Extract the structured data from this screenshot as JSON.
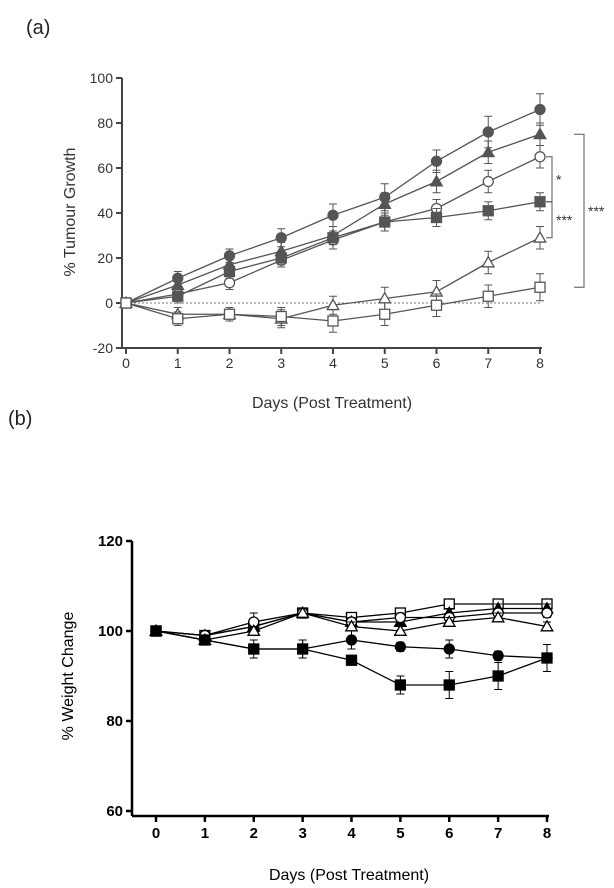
{
  "panel_labels": {
    "a": "(a)",
    "b": "(b)"
  },
  "chart_data": [
    {
      "type": "line",
      "panel": "(a)",
      "xlabel": "Days (Post Treatment)",
      "ylabel": "% Tumour Growth",
      "x": [
        0,
        1,
        2,
        3,
        4,
        5,
        6,
        7,
        8
      ],
      "xlim": [
        0,
        8
      ],
      "ylim": [
        -20,
        100
      ],
      "yticks": [
        -20,
        0,
        20,
        40,
        60,
        80,
        100
      ],
      "xticks": [
        0,
        1,
        2,
        3,
        4,
        5,
        6,
        7,
        8
      ],
      "grid": false,
      "reference_line": 0,
      "color": "#555555",
      "series": [
        {
          "marker": "circle-filled",
          "values": [
            0,
            11,
            21,
            29,
            39,
            47,
            63,
            76,
            86
          ],
          "errors": [
            1,
            3,
            3,
            4,
            5,
            6,
            5,
            7,
            7
          ]
        },
        {
          "marker": "triangle-filled",
          "values": [
            0,
            8,
            17,
            23,
            30,
            44,
            54,
            67,
            75
          ],
          "errors": [
            1,
            3,
            3,
            4,
            4,
            5,
            5,
            5,
            5
          ]
        },
        {
          "marker": "circle-open",
          "values": [
            0,
            4,
            9,
            19,
            28,
            36,
            42,
            54,
            65
          ],
          "errors": [
            1,
            3,
            3,
            3,
            4,
            4,
            4,
            5,
            5
          ]
        },
        {
          "marker": "square-filled",
          "values": [
            0,
            3,
            14,
            20,
            29,
            36,
            38,
            41,
            45
          ],
          "errors": [
            1,
            3,
            3,
            3,
            3,
            4,
            4,
            4,
            4
          ]
        },
        {
          "marker": "triangle-open",
          "values": [
            0,
            -5,
            -5,
            -7,
            -1,
            2,
            5,
            18,
            29
          ],
          "errors": [
            1,
            3,
            3,
            4,
            4,
            5,
            5,
            5,
            5
          ]
        },
        {
          "marker": "square-open",
          "values": [
            0,
            -7,
            -5,
            -6,
            -8,
            -5,
            -1,
            3,
            7
          ],
          "errors": [
            1,
            3,
            3,
            4,
            5,
            5,
            5,
            5,
            6
          ]
        }
      ],
      "significance": [
        {
          "label": "*",
          "between": [
            3,
            2
          ]
        },
        {
          "label": "***",
          "between": [
            4,
            3
          ]
        },
        {
          "label": "***",
          "between": [
            5,
            1
          ]
        }
      ]
    },
    {
      "type": "line",
      "panel": "(b)",
      "xlabel": "Days (Post Treatment)",
      "ylabel": "% Weight Change",
      "x": [
        0,
        1,
        2,
        3,
        4,
        5,
        6,
        7,
        8
      ],
      "xlim": [
        0,
        8
      ],
      "ylim": [
        60,
        120
      ],
      "yticks": [
        60,
        80,
        100,
        120
      ],
      "xticks": [
        0,
        1,
        2,
        3,
        4,
        5,
        6,
        7,
        8
      ],
      "grid": false,
      "color": "#000000",
      "series": [
        {
          "marker": "square-open",
          "values": [
            100,
            99,
            101,
            104,
            103,
            104,
            106,
            106,
            106
          ],
          "errors": [
            0,
            1,
            1,
            1,
            1,
            1,
            1,
            1,
            1
          ]
        },
        {
          "marker": "triangle-filled",
          "values": [
            100,
            99,
            101,
            104,
            102,
            102,
            104,
            105,
            105
          ],
          "errors": [
            0,
            1,
            1,
            1,
            1,
            1,
            1,
            1,
            1
          ]
        },
        {
          "marker": "circle-open",
          "values": [
            100,
            99,
            102,
            104,
            102,
            103,
            103,
            104,
            104
          ],
          "errors": [
            0,
            1,
            2,
            1,
            1,
            1,
            1,
            1,
            1
          ]
        },
        {
          "marker": "triangle-open",
          "values": [
            100,
            98,
            100,
            104,
            101,
            100,
            102,
            103,
            101
          ],
          "errors": [
            0,
            1,
            1,
            1,
            1,
            1,
            1,
            1,
            1
          ]
        },
        {
          "marker": "circle-filled",
          "values": [
            100,
            98,
            96,
            96,
            98,
            96.5,
            96,
            94.5,
            94
          ],
          "errors": [
            0,
            1,
            2,
            2,
            2,
            1,
            2,
            1,
            1
          ]
        },
        {
          "marker": "square-filled",
          "values": [
            100,
            98,
            96,
            96,
            93.5,
            88,
            88,
            90,
            94
          ],
          "errors": [
            0,
            1,
            1,
            2,
            1,
            2,
            3,
            3,
            3
          ]
        }
      ]
    }
  ]
}
